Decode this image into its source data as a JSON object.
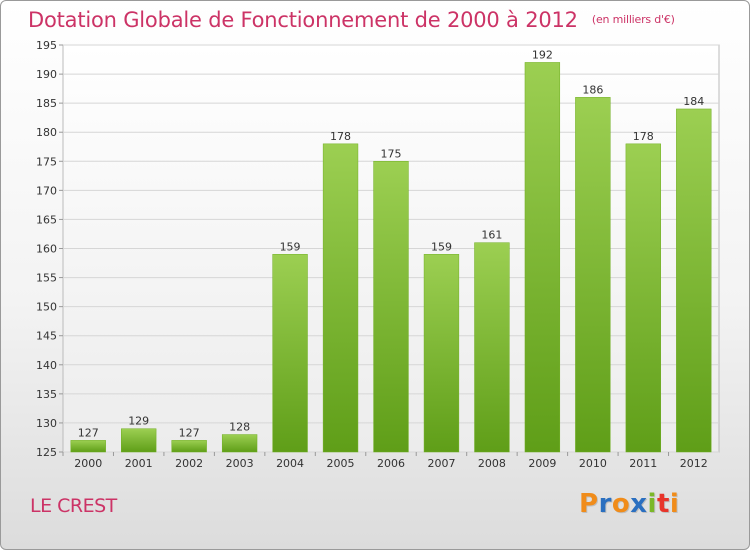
{
  "title": "Dotation Globale de Fonctionnement de 2000 à 2012",
  "subtitle": "(en milliers d'€)",
  "place": "LE CREST",
  "logo": {
    "letters": [
      "P",
      "r",
      "o",
      "x",
      "i",
      "t",
      "i"
    ],
    "colors": [
      "#f08c1a",
      "#2a6fc0",
      "#f08c1a",
      "#2a6fc0",
      "#7bb828",
      "#e8342a",
      "#f08c1a"
    ]
  },
  "chart_data": {
    "type": "bar",
    "categories": [
      "2000",
      "2001",
      "2002",
      "2003",
      "2004",
      "2005",
      "2006",
      "2007",
      "2008",
      "2009",
      "2010",
      "2011",
      "2012"
    ],
    "values": [
      127,
      129,
      127,
      128,
      159,
      178,
      175,
      159,
      161,
      192,
      186,
      178,
      184
    ],
    "title": "Dotation Globale de Fonctionnement de 2000 à 2012",
    "subtitle": "(en milliers d'€)",
    "xlabel": "",
    "ylabel": "",
    "ylim": [
      125,
      195
    ],
    "yticks": [
      125,
      130,
      135,
      140,
      145,
      150,
      155,
      160,
      165,
      170,
      175,
      180,
      185,
      190,
      195
    ],
    "grid": true,
    "bar_color": "#7cbf2e"
  }
}
